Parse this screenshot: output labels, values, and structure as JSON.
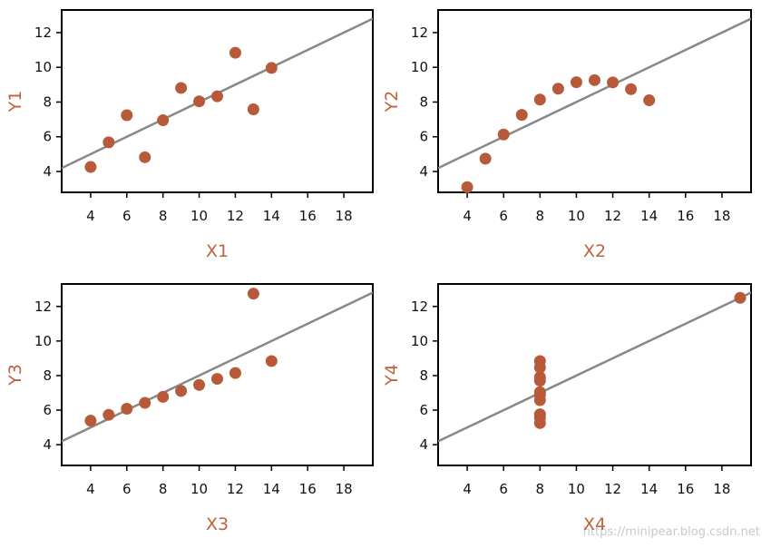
{
  "colors": {
    "point": "#b85a3a",
    "line": "#888888",
    "axis_label": "#c0613f",
    "frame": "#000000",
    "tick_text": "#111111",
    "watermark": "#c9c9c9"
  },
  "watermark": "https://minipear.blog.csdn.net",
  "chart_data": [
    {
      "type": "scatter",
      "xlabel": "X1",
      "ylabel": "Y1",
      "xlim": [
        2.4,
        19.6
      ],
      "ylim": [
        2.8,
        13.3
      ],
      "xticks": [
        4,
        6,
        8,
        10,
        12,
        14,
        16,
        18
      ],
      "yticks": [
        4,
        6,
        8,
        10,
        12
      ],
      "points": [
        [
          4,
          4.26
        ],
        [
          5,
          5.68
        ],
        [
          6,
          7.24
        ],
        [
          7,
          4.82
        ],
        [
          8,
          6.95
        ],
        [
          9,
          8.81
        ],
        [
          10,
          8.04
        ],
        [
          11,
          8.33
        ],
        [
          12,
          10.84
        ],
        [
          13,
          7.58
        ],
        [
          14,
          9.96
        ]
      ],
      "fit": {
        "slope": 0.5,
        "intercept": 3.0
      }
    },
    {
      "type": "scatter",
      "xlabel": "X2",
      "ylabel": "Y2",
      "xlim": [
        2.4,
        19.6
      ],
      "ylim": [
        2.8,
        13.3
      ],
      "xticks": [
        4,
        6,
        8,
        10,
        12,
        14,
        16,
        18
      ],
      "yticks": [
        4,
        6,
        8,
        10,
        12
      ],
      "points": [
        [
          4,
          3.1
        ],
        [
          5,
          4.74
        ],
        [
          6,
          6.13
        ],
        [
          7,
          7.26
        ],
        [
          8,
          8.14
        ],
        [
          9,
          8.77
        ],
        [
          10,
          9.14
        ],
        [
          11,
          9.26
        ],
        [
          12,
          9.13
        ],
        [
          13,
          8.74
        ],
        [
          14,
          8.1
        ]
      ],
      "fit": {
        "slope": 0.5,
        "intercept": 3.0
      }
    },
    {
      "type": "scatter",
      "xlabel": "X3",
      "ylabel": "Y3",
      "xlim": [
        2.4,
        19.6
      ],
      "ylim": [
        2.8,
        13.3
      ],
      "xticks": [
        4,
        6,
        8,
        10,
        12,
        14,
        16,
        18
      ],
      "yticks": [
        4,
        6,
        8,
        10,
        12
      ],
      "points": [
        [
          4,
          5.39
        ],
        [
          5,
          5.73
        ],
        [
          6,
          6.08
        ],
        [
          7,
          6.42
        ],
        [
          8,
          6.77
        ],
        [
          9,
          7.11
        ],
        [
          10,
          7.46
        ],
        [
          11,
          7.81
        ],
        [
          12,
          8.15
        ],
        [
          13,
          12.74
        ],
        [
          14,
          8.84
        ]
      ],
      "fit": {
        "slope": 0.5,
        "intercept": 3.0
      }
    },
    {
      "type": "scatter",
      "xlabel": "X4",
      "ylabel": "Y4",
      "xlim": [
        2.4,
        19.6
      ],
      "ylim": [
        2.8,
        13.3
      ],
      "xticks": [
        4,
        6,
        8,
        10,
        12,
        14,
        16,
        18
      ],
      "yticks": [
        4,
        6,
        8,
        10,
        12
      ],
      "points": [
        [
          8,
          6.58
        ],
        [
          8,
          5.76
        ],
        [
          8,
          7.71
        ],
        [
          8,
          8.84
        ],
        [
          8,
          8.47
        ],
        [
          8,
          7.04
        ],
        [
          8,
          5.25
        ],
        [
          19,
          12.5
        ],
        [
          8,
          5.56
        ],
        [
          8,
          7.91
        ],
        [
          8,
          6.89
        ]
      ],
      "fit": {
        "slope": 0.5,
        "intercept": 3.0
      }
    }
  ]
}
